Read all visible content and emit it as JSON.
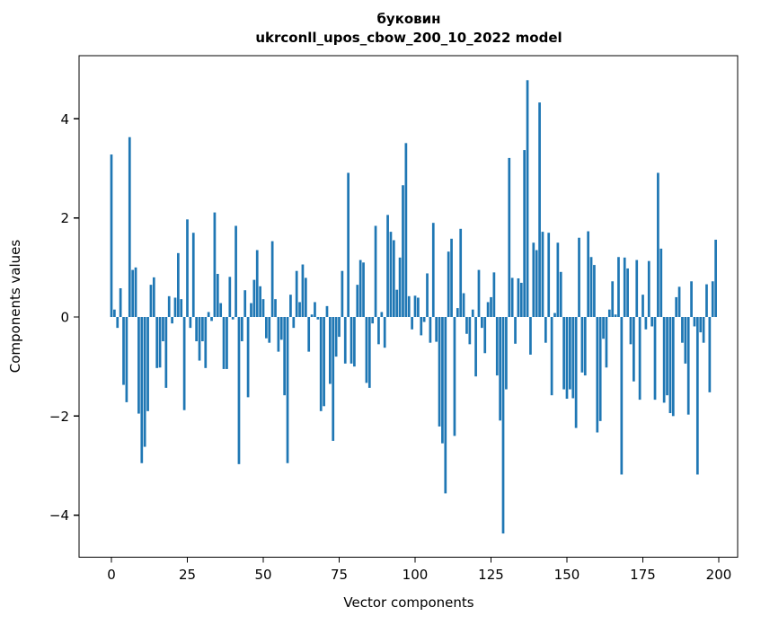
{
  "chart_data": {
    "type": "bar",
    "title_line1": "буковин",
    "title_line2": "ukrconll_upos_cbow_200_10_2022 model",
    "xlabel": "Vector components",
    "ylabel": "Components values",
    "x_tick_values": [
      0,
      25,
      50,
      75,
      100,
      125,
      150,
      175,
      200
    ],
    "x_tick_labels": [
      "0",
      "25",
      "50",
      "75",
      "100",
      "125",
      "150",
      "175",
      "200"
    ],
    "y_tick_values": [
      -4,
      -2,
      0,
      2,
      4
    ],
    "y_tick_labels": [
      "−4",
      "−2",
      "0",
      "2",
      "4"
    ],
    "xlim": [
      -10.6,
      206.2
    ],
    "ylim": [
      -4.84,
      5.27
    ],
    "grid": false,
    "legend": "none",
    "bar_color": "#1f77b4",
    "n_components": 200,
    "values": [
      3.28,
      0.15,
      -0.22,
      0.58,
      -1.37,
      -1.72,
      3.63,
      0.95,
      1.0,
      -1.95,
      -2.95,
      -2.62,
      -1.9,
      0.65,
      0.8,
      -1.03,
      -1.02,
      -0.49,
      -1.43,
      0.42,
      -0.13,
      0.39,
      1.29,
      0.36,
      -1.88,
      1.97,
      -0.22,
      1.7,
      -0.49,
      -0.88,
      -0.49,
      -1.03,
      0.1,
      -0.08,
      2.11,
      0.87,
      0.28,
      -1.05,
      -1.05,
      0.81,
      -0.05,
      1.84,
      -2.97,
      -0.49,
      0.54,
      -1.62,
      0.28,
      0.75,
      1.35,
      0.62,
      0.36,
      -0.43,
      -0.52,
      1.53,
      0.36,
      -0.7,
      -0.46,
      -1.58,
      -2.95,
      0.45,
      -0.22,
      0.93,
      0.3,
      1.06,
      0.79,
      -0.7,
      0.05,
      0.3,
      -0.05,
      -1.9,
      -1.8,
      0.22,
      -1.35,
      -2.5,
      -0.8,
      -0.4,
      0.93,
      -0.94,
      2.91,
      -0.94,
      -1.0,
      0.65,
      1.15,
      1.1,
      -1.33,
      -1.43,
      -0.13,
      1.84,
      -0.55,
      0.1,
      -0.62,
      2.06,
      1.72,
      1.55,
      0.55,
      1.2,
      2.66,
      3.51,
      0.42,
      -0.25,
      0.43,
      0.39,
      -0.37,
      -0.1,
      0.88,
      -0.52,
      1.9,
      -0.5,
      -2.21,
      -2.55,
      -3.56,
      1.32,
      1.58,
      -2.4,
      0.18,
      1.78,
      0.48,
      -0.34,
      -0.55,
      0.15,
      -1.2,
      0.95,
      -0.22,
      -0.73,
      0.3,
      0.4,
      0.9,
      -1.18,
      -2.09,
      -4.37,
      -1.46,
      3.21,
      0.79,
      -0.54,
      0.78,
      0.69,
      3.37,
      4.78,
      -0.76,
      1.5,
      1.35,
      4.33,
      1.72,
      -0.52,
      1.7,
      -1.58,
      0.08,
      1.5,
      0.91,
      -1.46,
      -1.65,
      -1.46,
      -1.64,
      -2.24,
      1.6,
      -1.12,
      -1.18,
      1.73,
      1.21,
      1.05,
      -2.33,
      -2.1,
      -0.44,
      -1.02,
      0.15,
      0.72,
      0.05,
      1.21,
      -3.18,
      1.2,
      0.98,
      -0.55,
      -1.3,
      1.15,
      -1.67,
      0.45,
      -0.25,
      1.13,
      -0.19,
      -1.67,
      2.91,
      1.38,
      -1.73,
      -1.58,
      -1.94,
      -2.0,
      0.4,
      0.61,
      -0.52,
      -0.94,
      -1.97,
      0.72,
      -0.19,
      -3.18,
      -0.31,
      -0.52,
      0.66,
      -1.52,
      0.72,
      1.56
    ]
  }
}
